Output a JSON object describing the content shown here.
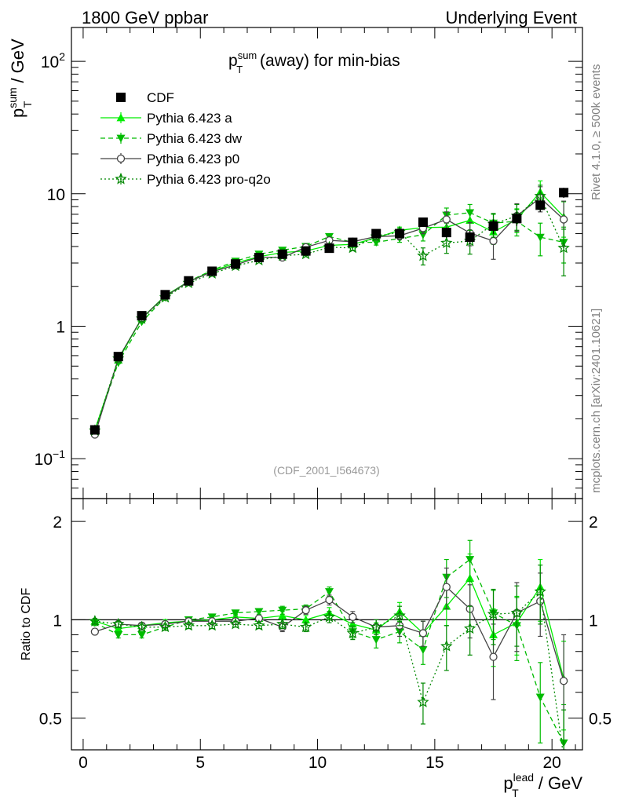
{
  "header": {
    "left": "1800 GeV ppbar",
    "right": "Underlying Event"
  },
  "side_labels": {
    "top": "Rivet 4.1.0, ≥ 500k events",
    "bottom": "mcplots.cern.ch [arXiv:2401.10621]"
  },
  "chart_data": [
    {
      "type": "scatter",
      "title": "p_T^sum (away) for min-bias",
      "title_parts": {
        "base": "p",
        "sup": "sum",
        "sub": "T",
        "rest": " (away) for min-bias"
      },
      "reference_id": "(CDF_2001_I564673)",
      "ylabel": "p_T^sum / GeV",
      "ylabel_parts": {
        "base": "p",
        "sup": "sum",
        "sub": "T",
        "rest": " / GeV"
      },
      "yscale": "log",
      "ylim": [
        0.05,
        180
      ],
      "yticks": [
        {
          "value": 0.1,
          "base": "10",
          "exp": "−1"
        },
        {
          "value": 1,
          "label": "1"
        },
        {
          "value": 10,
          "label": "10"
        },
        {
          "value": 100,
          "base": "10",
          "exp": "2"
        }
      ],
      "xlim": [
        -0.5,
        21.3
      ],
      "legend_position": "top-left",
      "x": [
        0.5,
        1.5,
        2.5,
        3.5,
        4.5,
        5.5,
        6.5,
        7.5,
        8.5,
        9.5,
        10.5,
        11.5,
        12.5,
        13.5,
        14.5,
        15.5,
        16.5,
        17.5,
        18.5,
        19.5,
        20.5
      ],
      "series": [
        {
          "name": "CDF",
          "style": "data",
          "marker": "square-filled",
          "color": "#000000",
          "values": [
            0.165,
            0.59,
            1.2,
            1.73,
            2.2,
            2.6,
            2.95,
            3.3,
            3.5,
            3.7,
            3.88,
            4.3,
            5.0,
            5.0,
            6.1,
            5.1,
            4.7,
            5.7,
            6.5,
            8.2,
            10.2
          ],
          "errors": [
            0.01,
            0.02,
            0.04,
            0.05,
            0.06,
            0.07,
            0.08,
            0.08,
            0.09,
            0.1,
            0.11,
            0.14,
            0.17,
            0.21,
            0.3,
            0.45,
            0.55,
            0.7,
            0.8,
            0.9,
            0.9
          ]
        },
        {
          "name": "Pythia 6.423 a",
          "style": "solid",
          "marker": "triangle-up",
          "color": "#00ee00",
          "values": [
            0.165,
            0.555,
            1.15,
            1.7,
            2.18,
            2.6,
            3.0,
            3.35,
            3.6,
            3.7,
            4.08,
            4.15,
            4.65,
            5.3,
            5.55,
            5.6,
            6.3,
            5.15,
            6.4,
            10.3,
            6.7
          ],
          "errors": [
            0.004,
            0.01,
            0.02,
            0.03,
            0.04,
            0.05,
            0.06,
            0.07,
            0.08,
            0.1,
            0.12,
            0.15,
            0.2,
            0.3,
            0.45,
            0.7,
            1.2,
            1.0,
            1.3,
            2.2,
            2.0
          ]
        },
        {
          "name": "Pythia 6.423 dw",
          "style": "dashed",
          "marker": "triangle-down",
          "color": "#00bb00",
          "values": [
            0.162,
            0.53,
            1.08,
            1.65,
            2.18,
            2.65,
            3.1,
            3.5,
            3.75,
            4.0,
            4.75,
            4.3,
            4.3,
            4.6,
            4.9,
            6.9,
            7.2,
            6.0,
            6.2,
            4.7,
            4.3
          ],
          "errors": [
            0.004,
            0.01,
            0.02,
            0.03,
            0.04,
            0.05,
            0.06,
            0.07,
            0.09,
            0.11,
            0.13,
            0.15,
            0.2,
            0.3,
            0.5,
            0.9,
            1.1,
            1.0,
            1.4,
            1.3,
            1.3
          ]
        },
        {
          "name": "Pythia 6.423 p0",
          "style": "solid",
          "marker": "circle-open",
          "color": "#444444",
          "values": [
            0.152,
            0.57,
            1.15,
            1.68,
            2.17,
            2.58,
            2.9,
            3.33,
            3.3,
            3.95,
            4.45,
            4.35,
            4.75,
            4.82,
            5.5,
            6.4,
            5.05,
            4.4,
            6.8,
            9.3,
            6.4
          ],
          "errors": [
            0.004,
            0.01,
            0.02,
            0.03,
            0.04,
            0.05,
            0.06,
            0.07,
            0.09,
            0.11,
            0.14,
            0.16,
            0.22,
            0.32,
            0.5,
            0.9,
            1.0,
            1.2,
            1.6,
            2.0,
            2.4
          ]
        },
        {
          "name": "Pythia 6.423 pro-q2o",
          "style": "dotted",
          "marker": "star-open",
          "color": "#008800",
          "values": [
            0.163,
            0.57,
            1.14,
            1.65,
            2.12,
            2.5,
            2.85,
            3.15,
            3.4,
            3.5,
            3.95,
            3.9,
            4.75,
            5.15,
            3.4,
            4.25,
            4.4,
            5.9,
            6.8,
            9.6,
            3.9
          ],
          "errors": [
            0.004,
            0.01,
            0.02,
            0.03,
            0.04,
            0.05,
            0.06,
            0.07,
            0.09,
            0.1,
            0.12,
            0.15,
            0.2,
            0.3,
            0.5,
            0.7,
            0.9,
            1.2,
            1.5,
            2.0,
            1.5
          ]
        }
      ]
    },
    {
      "type": "scatter",
      "ylabel": "Ratio to CDF",
      "xlabel": "p_T^lead / GeV",
      "xlabel_parts": {
        "base": "p",
        "sup": "lead",
        "sub": "T",
        "rest": " / GeV"
      },
      "yscale": "log",
      "ylim": [
        0.4,
        2.35
      ],
      "yticks": [
        {
          "value": 0.5,
          "label": "0.5"
        },
        {
          "value": 1,
          "label": "1"
        },
        {
          "value": 2,
          "label": "2"
        }
      ],
      "xlim": [
        -0.5,
        21.3
      ],
      "xticks": [
        {
          "value": 0,
          "label": "0"
        },
        {
          "value": 5,
          "label": "5"
        },
        {
          "value": 10,
          "label": "10"
        },
        {
          "value": 15,
          "label": "15"
        },
        {
          "value": 20,
          "label": "20"
        }
      ],
      "reference_line": 1,
      "x": [
        0.5,
        1.5,
        2.5,
        3.5,
        4.5,
        5.5,
        6.5,
        7.5,
        8.5,
        9.5,
        10.5,
        11.5,
        12.5,
        13.5,
        14.5,
        15.5,
        16.5,
        17.5,
        18.5,
        19.5,
        20.5
      ],
      "series": [
        {
          "name": "Pythia 6.423 a",
          "values": [
            0.99,
            0.94,
            0.96,
            0.98,
            0.99,
            1.0,
            1.02,
            1.01,
            1.03,
            1.0,
            1.05,
            0.97,
            0.93,
            1.06,
            0.91,
            1.1,
            1.34,
            0.9,
            0.98,
            1.26,
            0.66
          ],
          "errors": [
            0.02,
            0.02,
            0.02,
            0.02,
            0.02,
            0.02,
            0.02,
            0.02,
            0.03,
            0.03,
            0.04,
            0.04,
            0.05,
            0.07,
            0.08,
            0.14,
            0.25,
            0.18,
            0.2,
            0.27,
            0.2
          ]
        },
        {
          "name": "Pythia 6.423 dw",
          "values": [
            0.98,
            0.9,
            0.9,
            0.95,
            1.0,
            1.02,
            1.05,
            1.06,
            1.07,
            1.08,
            1.22,
            0.92,
            0.87,
            0.92,
            0.81,
            1.35,
            1.53,
            1.05,
            0.96,
            0.58,
            0.42
          ],
          "errors": [
            0.02,
            0.02,
            0.02,
            0.02,
            0.02,
            0.02,
            0.02,
            0.02,
            0.03,
            0.03,
            0.04,
            0.04,
            0.05,
            0.07,
            0.08,
            0.18,
            0.22,
            0.18,
            0.21,
            0.16,
            0.13
          ]
        },
        {
          "name": "Pythia 6.423 p0",
          "values": [
            0.92,
            0.97,
            0.96,
            0.97,
            0.99,
            0.99,
            0.99,
            1.01,
            0.95,
            1.07,
            1.15,
            1.02,
            0.95,
            0.96,
            0.91,
            1.26,
            1.08,
            0.77,
            1.05,
            1.14,
            0.65
          ],
          "errors": [
            0.02,
            0.02,
            0.02,
            0.02,
            0.02,
            0.02,
            0.02,
            0.02,
            0.03,
            0.03,
            0.04,
            0.04,
            0.05,
            0.07,
            0.08,
            0.18,
            0.2,
            0.2,
            0.25,
            0.25,
            0.25
          ]
        },
        {
          "name": "Pythia 6.423 pro-q2o",
          "values": [
            0.99,
            0.97,
            0.95,
            0.95,
            0.96,
            0.96,
            0.97,
            0.96,
            0.97,
            0.95,
            1.02,
            0.91,
            0.95,
            1.03,
            0.56,
            0.83,
            0.94,
            1.04,
            1.05,
            1.22,
            0.38
          ],
          "errors": [
            0.02,
            0.02,
            0.02,
            0.02,
            0.02,
            0.02,
            0.02,
            0.02,
            0.03,
            0.03,
            0.04,
            0.04,
            0.05,
            0.07,
            0.08,
            0.13,
            0.16,
            0.2,
            0.22,
            0.25,
            0.15
          ]
        }
      ]
    }
  ]
}
